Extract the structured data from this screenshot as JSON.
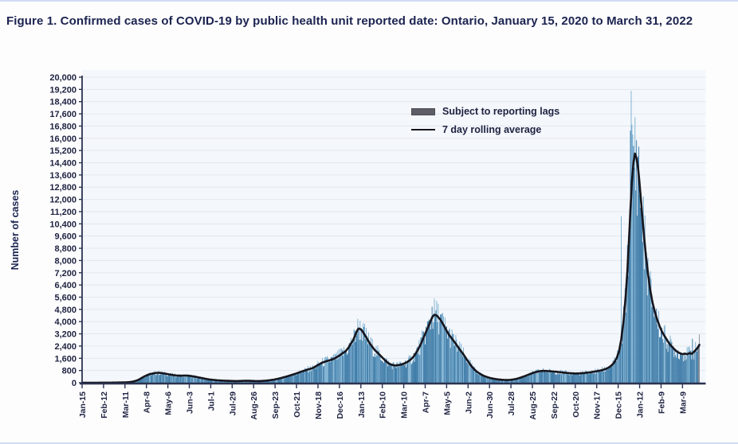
{
  "page": {
    "title": "Figure 1. Confirmed cases of COVID-19 by public health unit reported date: Ontario, January 15, 2020 to March 31, 2022"
  },
  "colors": {
    "title_text": "#1b234f",
    "bar": "#3878a6",
    "bar_light": "#79aed0",
    "lag_bar": "#8b8b94",
    "line": "#16161e",
    "grid": "#e2e8f0",
    "plot_bg": "#f4f7fb",
    "axis": "#2b3350",
    "tick_text": "#1e2240",
    "legend_swatch": "#5d5d68",
    "edge_strip": "#cfdcf3"
  },
  "chart_data": {
    "type": "bar",
    "title": "Figure 1. Confirmed cases of COVID-19 by public health unit reported date: Ontario, January 15, 2020 to March 31, 2022",
    "xlabel": "",
    "ylabel": "Number of cases",
    "ylim": [
      0,
      20000
    ],
    "y_tick_step": 800,
    "grid": "horizontal",
    "legend_position": "top-center-inside",
    "x_start_date": "Jan-15-2020",
    "x_end_date": "Mar-31-2022",
    "x_tick_interval_days": 28,
    "total_days": 806,
    "x_tick_labels": [
      "Jan-15",
      "Feb-12",
      "Mar-11",
      "Apr-8",
      "May-6",
      "Jun-3",
      "Jul-1",
      "Jul-29",
      "Aug-26",
      "Sep-23",
      "Oct-21",
      "Nov-18",
      "Dec-16",
      "Jan-13",
      "Feb-10",
      "Mar-10",
      "Apr-7",
      "May-5",
      "Jun-2",
      "Jun-30",
      "Jul-28",
      "Aug-25",
      "Sep-22",
      "Oct-20",
      "Nov-17",
      "Dec-15",
      "Jan-12",
      "Feb-9",
      "Mar-9"
    ],
    "legend": [
      {
        "label": "Subject to reporting lags",
        "type": "bar"
      },
      {
        "label": "7 day rolling average",
        "type": "line"
      }
    ],
    "series": [
      {
        "name": "7 day rolling average",
        "style": "line",
        "points_day_value": [
          [
            0,
            0
          ],
          [
            20,
            2
          ],
          [
            40,
            8
          ],
          [
            55,
            20
          ],
          [
            62,
            40
          ],
          [
            66,
            70
          ],
          [
            70,
            120
          ],
          [
            74,
            200
          ],
          [
            78,
            320
          ],
          [
            82,
            430
          ],
          [
            86,
            520
          ],
          [
            90,
            580
          ],
          [
            94,
            620
          ],
          [
            98,
            650
          ],
          [
            102,
            645
          ],
          [
            106,
            615
          ],
          [
            110,
            580
          ],
          [
            114,
            545
          ],
          [
            118,
            510
          ],
          [
            122,
            480
          ],
          [
            126,
            462
          ],
          [
            130,
            460
          ],
          [
            134,
            470
          ],
          [
            138,
            463
          ],
          [
            142,
            440
          ],
          [
            146,
            408
          ],
          [
            150,
            370
          ],
          [
            154,
            330
          ],
          [
            158,
            290
          ],
          [
            162,
            250
          ],
          [
            166,
            215
          ],
          [
            170,
            190
          ],
          [
            175,
            165
          ],
          [
            180,
            148
          ],
          [
            185,
            135
          ],
          [
            190,
            125
          ],
          [
            195,
            116
          ],
          [
            200,
            110
          ],
          [
            205,
            113
          ],
          [
            210,
            121
          ],
          [
            215,
            128
          ],
          [
            220,
            121
          ],
          [
            225,
            112
          ],
          [
            230,
            108
          ],
          [
            235,
            116
          ],
          [
            240,
            135
          ],
          [
            245,
            162
          ],
          [
            250,
            200
          ],
          [
            255,
            250
          ],
          [
            260,
            310
          ],
          [
            265,
            380
          ],
          [
            270,
            452
          ],
          [
            275,
            530
          ],
          [
            280,
            612
          ],
          [
            285,
            700
          ],
          [
            290,
            788
          ],
          [
            295,
            868
          ],
          [
            300,
            940
          ],
          [
            305,
            1060
          ],
          [
            310,
            1220
          ],
          [
            315,
            1345
          ],
          [
            320,
            1425
          ],
          [
            324,
            1480
          ],
          [
            328,
            1552
          ],
          [
            332,
            1650
          ],
          [
            336,
            1780
          ],
          [
            340,
            1925
          ],
          [
            344,
            2060
          ],
          [
            348,
            2300
          ],
          [
            351,
            2550
          ],
          [
            354,
            2800
          ],
          [
            357,
            3150
          ],
          [
            359,
            3400
          ],
          [
            361,
            3550
          ],
          [
            364,
            3500
          ],
          [
            367,
            3300
          ],
          [
            370,
            3050
          ],
          [
            373,
            2800
          ],
          [
            376,
            2550
          ],
          [
            379,
            2350
          ],
          [
            382,
            2150
          ],
          [
            385,
            2000
          ],
          [
            388,
            1850
          ],
          [
            391,
            1700
          ],
          [
            394,
            1550
          ],
          [
            397,
            1400
          ],
          [
            400,
            1280
          ],
          [
            403,
            1200
          ],
          [
            406,
            1150
          ],
          [
            409,
            1130
          ],
          [
            412,
            1140
          ],
          [
            415,
            1170
          ],
          [
            418,
            1210
          ],
          [
            421,
            1270
          ],
          [
            424,
            1340
          ],
          [
            427,
            1440
          ],
          [
            430,
            1560
          ],
          [
            433,
            1720
          ],
          [
            436,
            1950
          ],
          [
            439,
            2200
          ],
          [
            442,
            2500
          ],
          [
            445,
            2850
          ],
          [
            448,
            3200
          ],
          [
            451,
            3550
          ],
          [
            454,
            3900
          ],
          [
            456,
            4150
          ],
          [
            458,
            4350
          ],
          [
            460,
            4450
          ],
          [
            462,
            4430
          ],
          [
            464,
            4350
          ],
          [
            467,
            4180
          ],
          [
            470,
            3950
          ],
          [
            473,
            3680
          ],
          [
            476,
            3400
          ],
          [
            479,
            3150
          ],
          [
            482,
            2950
          ],
          [
            485,
            2750
          ],
          [
            488,
            2550
          ],
          [
            491,
            2330
          ],
          [
            494,
            2120
          ],
          [
            497,
            1920
          ],
          [
            500,
            1700
          ],
          [
            503,
            1470
          ],
          [
            506,
            1250
          ],
          [
            509,
            1050
          ],
          [
            512,
            880
          ],
          [
            515,
            745
          ],
          [
            518,
            635
          ],
          [
            521,
            540
          ],
          [
            524,
            462
          ],
          [
            527,
            400
          ],
          [
            530,
            350
          ],
          [
            533,
            308
          ],
          [
            536,
            275
          ],
          [
            539,
            248
          ],
          [
            542,
            226
          ],
          [
            545,
            207
          ],
          [
            548,
            193
          ],
          [
            551,
            183
          ],
          [
            554,
            178
          ],
          [
            557,
            180
          ],
          [
            560,
            192
          ],
          [
            563,
            212
          ],
          [
            566,
            242
          ],
          [
            569,
            280
          ],
          [
            572,
            325
          ],
          [
            575,
            378
          ],
          [
            578,
            432
          ],
          [
            581,
            490
          ],
          [
            584,
            550
          ],
          [
            587,
            608
          ],
          [
            590,
            662
          ],
          [
            593,
            708
          ],
          [
            596,
            742
          ],
          [
            599,
            764
          ],
          [
            602,
            775
          ],
          [
            605,
            772
          ],
          [
            608,
            762
          ],
          [
            611,
            750
          ],
          [
            614,
            738
          ],
          [
            617,
            728
          ],
          [
            620,
            714
          ],
          [
            623,
            698
          ],
          [
            626,
            680
          ],
          [
            629,
            662
          ],
          [
            632,
            645
          ],
          [
            635,
            630
          ],
          [
            638,
            619
          ],
          [
            641,
            611
          ],
          [
            644,
            606
          ],
          [
            647,
            607
          ],
          [
            650,
            614
          ],
          [
            653,
            624
          ],
          [
            656,
            638
          ],
          [
            659,
            654
          ],
          [
            662,
            672
          ],
          [
            665,
            694
          ],
          [
            668,
            718
          ],
          [
            671,
            744
          ],
          [
            674,
            772
          ],
          [
            677,
            802
          ],
          [
            680,
            840
          ],
          [
            683,
            890
          ],
          [
            686,
            952
          ],
          [
            689,
            1040
          ],
          [
            692,
            1165
          ],
          [
            695,
            1335
          ],
          [
            698,
            1610
          ],
          [
            701,
            2030
          ],
          [
            704,
            2820
          ],
          [
            707,
            4020
          ],
          [
            710,
            5800
          ],
          [
            712,
            7300
          ],
          [
            714,
            9250
          ],
          [
            716,
            11300
          ],
          [
            718,
            13200
          ],
          [
            720,
            14450
          ],
          [
            722,
            15000
          ],
          [
            724,
            14680
          ],
          [
            726,
            14060
          ],
          [
            728,
            13020
          ],
          [
            730,
            11800
          ],
          [
            733,
            10020
          ],
          [
            736,
            8420
          ],
          [
            739,
            7120
          ],
          [
            742,
            6020
          ],
          [
            745,
            5220
          ],
          [
            748,
            4620
          ],
          [
            751,
            4120
          ],
          [
            754,
            3720
          ],
          [
            757,
            3360
          ],
          [
            760,
            3100
          ],
          [
            763,
            2860
          ],
          [
            766,
            2620
          ],
          [
            769,
            2420
          ],
          [
            772,
            2260
          ],
          [
            775,
            2110
          ],
          [
            778,
            2000
          ],
          [
            781,
            1925
          ],
          [
            784,
            1865
          ],
          [
            787,
            1905
          ],
          [
            790,
            1865
          ],
          [
            793,
            1935
          ],
          [
            796,
            1895
          ],
          [
            799,
            2025
          ],
          [
            802,
            2185
          ],
          [
            805,
            2385
          ],
          [
            806,
            2480
          ]
        ]
      },
      {
        "name": "Daily reported cases",
        "style": "bar",
        "derived_from": "7 day rolling average with daily reporting variation",
        "noise": {
          "lo": 0.74,
          "hi": 1.26,
          "light_shade_threshold": 0.78
        },
        "notable_single_day_bars": {
          "360": 4180,
          "367": 3900,
          "457": 4980,
          "704": 10900,
          "716": 16500,
          "717": 19100,
          "718": 16900,
          "719": 16250,
          "720": 15500,
          "797": 2880
        }
      },
      {
        "name": "Subject to reporting lags",
        "style": "bar-gray",
        "points_day_value": [
          [
            805,
            2250
          ],
          [
            806,
            3160
          ]
        ]
      }
    ]
  }
}
